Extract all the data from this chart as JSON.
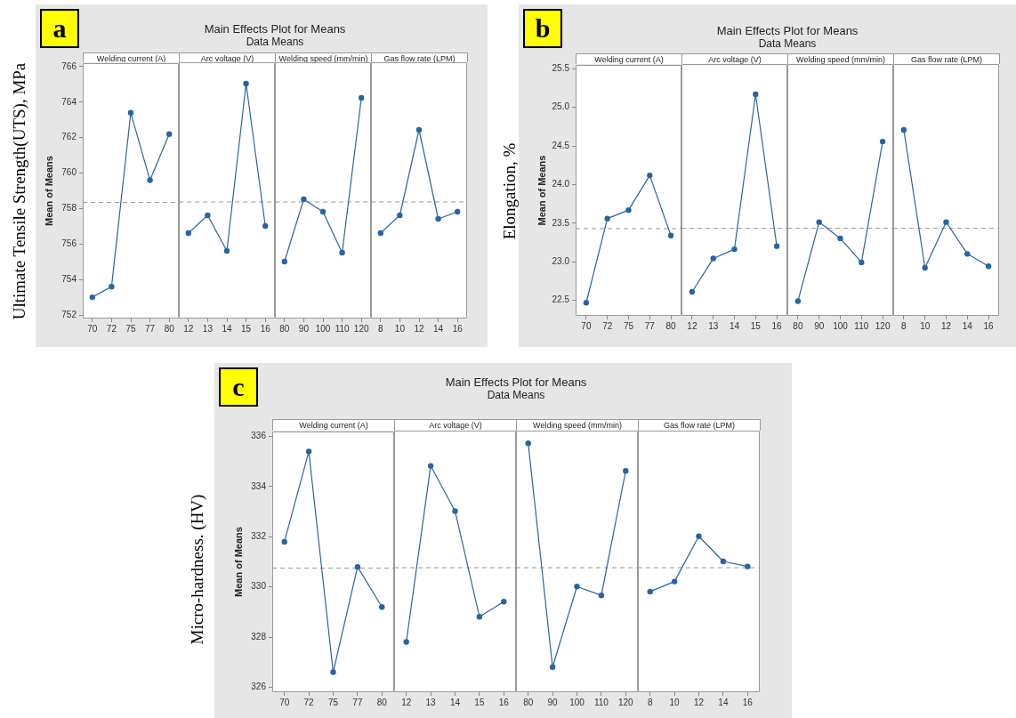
{
  "chart_data": [
    {
      "type": "line",
      "title": "Welding current (A)",
      "ylabel": "Mean of Means",
      "annotations": [
        "a",
        "Main Effects Plot for Means",
        "Data Means",
        "Ultimate Tensile Strength(UTS), MPa"
      ],
      "categories": [
        "70",
        "72",
        "75",
        "77",
        "80"
      ],
      "values": [
        753.0,
        753.6,
        763.4,
        759.6,
        762.2
      ],
      "color": "#2a64a0",
      "ylim": [
        751.8,
        766.2
      ],
      "yticks": [
        752,
        754,
        756,
        758,
        760,
        762,
        764,
        766
      ],
      "ref_lines": [
        {
          "axis": "y",
          "value": 758.35,
          "color": "#999999",
          "line_style": "dashed"
        }
      ],
      "marker": "circle"
    },
    {
      "type": "line",
      "title": "Arc voltage (V)",
      "categories": [
        "12",
        "13",
        "14",
        "15",
        "16"
      ],
      "values": [
        756.6,
        757.6,
        755.6,
        765.0,
        757.0
      ],
      "color": "#2a64a0",
      "ylim": [
        751.8,
        766.2
      ],
      "yticks": [
        752,
        754,
        756,
        758,
        760,
        762,
        764,
        766
      ],
      "ref_lines": [
        {
          "axis": "y",
          "value": 758.35,
          "color": "#999999",
          "line_style": "dashed"
        }
      ],
      "marker": "circle",
      "tick_labels": "x"
    },
    {
      "type": "line",
      "title": "Welding speed (mm/min)",
      "categories": [
        "80",
        "90",
        "100",
        "110",
        "120"
      ],
      "values": [
        755.0,
        758.5,
        757.8,
        755.5,
        764.2
      ],
      "color": "#2a64a0",
      "ylim": [
        751.8,
        766.2
      ],
      "yticks": [
        752,
        754,
        756,
        758,
        760,
        762,
        764,
        766
      ],
      "ref_lines": [
        {
          "axis": "y",
          "value": 758.35,
          "color": "#999999",
          "line_style": "dashed"
        }
      ],
      "marker": "circle",
      "tick_labels": "x"
    },
    {
      "type": "line",
      "title": "Gas flow rate (LPM)",
      "categories": [
        "8",
        "10",
        "12",
        "14",
        "16"
      ],
      "values": [
        756.6,
        757.6,
        762.4,
        757.4,
        757.8
      ],
      "color": "#2a64a0",
      "ylim": [
        751.8,
        766.2
      ],
      "yticks": [
        752,
        754,
        756,
        758,
        760,
        762,
        764,
        766
      ],
      "ref_lines": [
        {
          "axis": "y",
          "value": 758.35,
          "color": "#999999",
          "line_style": "dashed"
        }
      ],
      "marker": "circle",
      "tick_labels": "x"
    },
    {
      "type": "line",
      "title": "Welding current (A)",
      "ylabel": "Mean of Means",
      "annotations": [
        "b",
        "Main Effects Plot for Means",
        "Data Means",
        "Elongation, %"
      ],
      "categories": [
        "70",
        "72",
        "75",
        "77",
        "80"
      ],
      "values": [
        22.47,
        23.56,
        23.67,
        24.12,
        23.34
      ],
      "color": "#2a64a0",
      "ylim": [
        22.3,
        25.55
      ],
      "yticks": [
        {
          "value": 22.5,
          "label": "22.5"
        },
        {
          "value": 23,
          "label": "23.0"
        },
        {
          "value": 23.5,
          "label": "23.5"
        },
        {
          "value": 24,
          "label": "24.0"
        },
        {
          "value": 24.5,
          "label": "24.5"
        },
        {
          "value": 25,
          "label": "25.0"
        },
        {
          "value": 25.5,
          "label": "25.5"
        }
      ],
      "ref_lines": [
        {
          "axis": "y",
          "value": 23.43,
          "color": "#999999",
          "line_style": "dashed"
        }
      ],
      "marker": "circle"
    },
    {
      "type": "line",
      "title": "Arc voltage (V)",
      "categories": [
        "12",
        "13",
        "14",
        "15",
        "16"
      ],
      "values": [
        22.61,
        23.04,
        23.16,
        25.16,
        23.2
      ],
      "color": "#2a64a0",
      "ylim": [
        22.3,
        25.55
      ],
      "yticks": [
        22.5,
        23,
        23.5,
        24,
        24.5,
        25,
        25.5
      ],
      "ref_lines": [
        {
          "axis": "y",
          "value": 23.43,
          "color": "#999999",
          "line_style": "dashed"
        }
      ],
      "marker": "circle",
      "tick_labels": "x"
    },
    {
      "type": "line",
      "title": "Welding speed (mm/min)",
      "categories": [
        "80",
        "90",
        "100",
        "110",
        "120"
      ],
      "values": [
        22.49,
        23.51,
        23.3,
        22.99,
        24.55
      ],
      "color": "#2a64a0",
      "ylim": [
        22.3,
        25.55
      ],
      "yticks": [
        22.5,
        23,
        23.5,
        24,
        24.5,
        25,
        25.5
      ],
      "ref_lines": [
        {
          "axis": "y",
          "value": 23.43,
          "color": "#999999",
          "line_style": "dashed"
        }
      ],
      "marker": "circle",
      "tick_labels": "x"
    },
    {
      "type": "line",
      "title": "Gas flow rate (LPM)",
      "categories": [
        "8",
        "10",
        "12",
        "14",
        "16"
      ],
      "values": [
        24.7,
        22.92,
        23.51,
        23.1,
        22.94
      ],
      "color": "#2a64a0",
      "ylim": [
        22.3,
        25.55
      ],
      "yticks": [
        22.5,
        23,
        23.5,
        24,
        24.5,
        25,
        25.5
      ],
      "ref_lines": [
        {
          "axis": "y",
          "value": 23.43,
          "color": "#999999",
          "line_style": "dashed"
        }
      ],
      "marker": "circle",
      "tick_labels": "x"
    },
    {
      "type": "line",
      "title": "Welding current (A)",
      "ylabel": "Mean of Means",
      "annotations": [
        "c",
        "Main Effects Plot for Means",
        "Data Means",
        "Micro-hardness. (HV)"
      ],
      "categories": [
        "70",
        "72",
        "75",
        "77",
        "80"
      ],
      "values": [
        331.8,
        335.4,
        326.6,
        330.8,
        329.2
      ],
      "color": "#2a64a0",
      "ylim": [
        325.8,
        336.2
      ],
      "yticks": [
        326,
        328,
        330,
        332,
        334,
        336
      ],
      "ref_lines": [
        {
          "axis": "y",
          "value": 330.75,
          "color": "#999999",
          "line_style": "dashed"
        }
      ],
      "marker": "circle"
    },
    {
      "type": "line",
      "title": "Arc voltage (V)",
      "categories": [
        "12",
        "13",
        "14",
        "15",
        "16"
      ],
      "values": [
        327.8,
        334.8,
        333.0,
        328.8,
        329.4
      ],
      "color": "#2a64a0",
      "ylim": [
        325.8,
        336.2
      ],
      "yticks": [
        326,
        328,
        330,
        332,
        334,
        336
      ],
      "ref_lines": [
        {
          "axis": "y",
          "value": 330.75,
          "color": "#999999",
          "line_style": "dashed"
        }
      ],
      "marker": "circle",
      "tick_labels": "x"
    },
    {
      "type": "line",
      "title": "Welding speed (mm/min)",
      "categories": [
        "80",
        "90",
        "100",
        "110",
        "120"
      ],
      "values": [
        335.7,
        326.8,
        330.0,
        329.65,
        334.6
      ],
      "color": "#2a64a0",
      "ylim": [
        325.8,
        336.2
      ],
      "yticks": [
        326,
        328,
        330,
        332,
        334,
        336
      ],
      "ref_lines": [
        {
          "axis": "y",
          "value": 330.75,
          "color": "#999999",
          "line_style": "dashed"
        }
      ],
      "marker": "circle",
      "tick_labels": "x"
    },
    {
      "type": "line",
      "title": "Gas flow rate (LPM)",
      "categories": [
        "8",
        "10",
        "12",
        "14",
        "16"
      ],
      "values": [
        329.8,
        330.2,
        332.0,
        331.0,
        330.8
      ],
      "color": "#2a64a0",
      "ylim": [
        325.8,
        336.2
      ],
      "yticks": [
        326,
        328,
        330,
        332,
        334,
        336
      ],
      "ref_lines": [
        {
          "axis": "y",
          "value": 330.75,
          "color": "#999999",
          "line_style": "dashed"
        }
      ],
      "marker": "circle",
      "tick_labels": "x"
    }
  ]
}
